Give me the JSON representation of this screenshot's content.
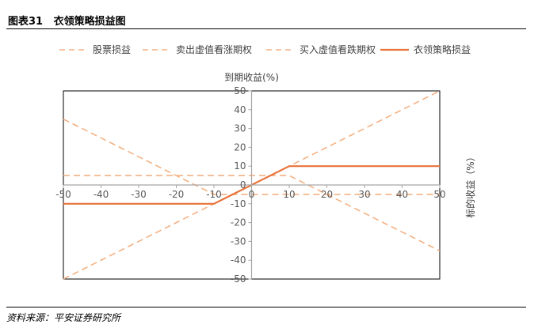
{
  "figure": {
    "title": "图表31   衣领策略损益图",
    "source": "资料来源：平安证券研究所"
  },
  "chart_data": {
    "type": "line",
    "ylabel": "到期收益(%)",
    "xlabel": "标的收益（%）",
    "xlim": [
      -50,
      50
    ],
    "ylim": [
      -50,
      50
    ],
    "xticks": [
      -50,
      -40,
      -30,
      -20,
      -10,
      0,
      10,
      20,
      30,
      40,
      50
    ],
    "yticks": [
      50,
      40,
      30,
      20,
      10,
      0,
      -10,
      -20,
      -30,
      -40,
      -50
    ],
    "legend_position": "top",
    "series": [
      {
        "name": "股票损益",
        "color": "#F4B183",
        "dash": "dashed",
        "x": [
          -50,
          50
        ],
        "y": [
          -50,
          50
        ]
      },
      {
        "name": "卖出虚值看涨期权",
        "color": "#F4B183",
        "dash": "dashed",
        "x": [
          -50,
          10,
          50
        ],
        "y": [
          5,
          5,
          -35
        ]
      },
      {
        "name": "买入虚值看跌期权",
        "color": "#F4B183",
        "dash": "dashed",
        "x": [
          -50,
          -10,
          50
        ],
        "y": [
          35,
          -5,
          -5
        ]
      },
      {
        "name": "衣领策略损益",
        "color": "#E8733A",
        "dash": "solid",
        "x": [
          -50,
          -10,
          10,
          50
        ],
        "y": [
          -10,
          -10,
          10,
          10
        ]
      }
    ]
  }
}
